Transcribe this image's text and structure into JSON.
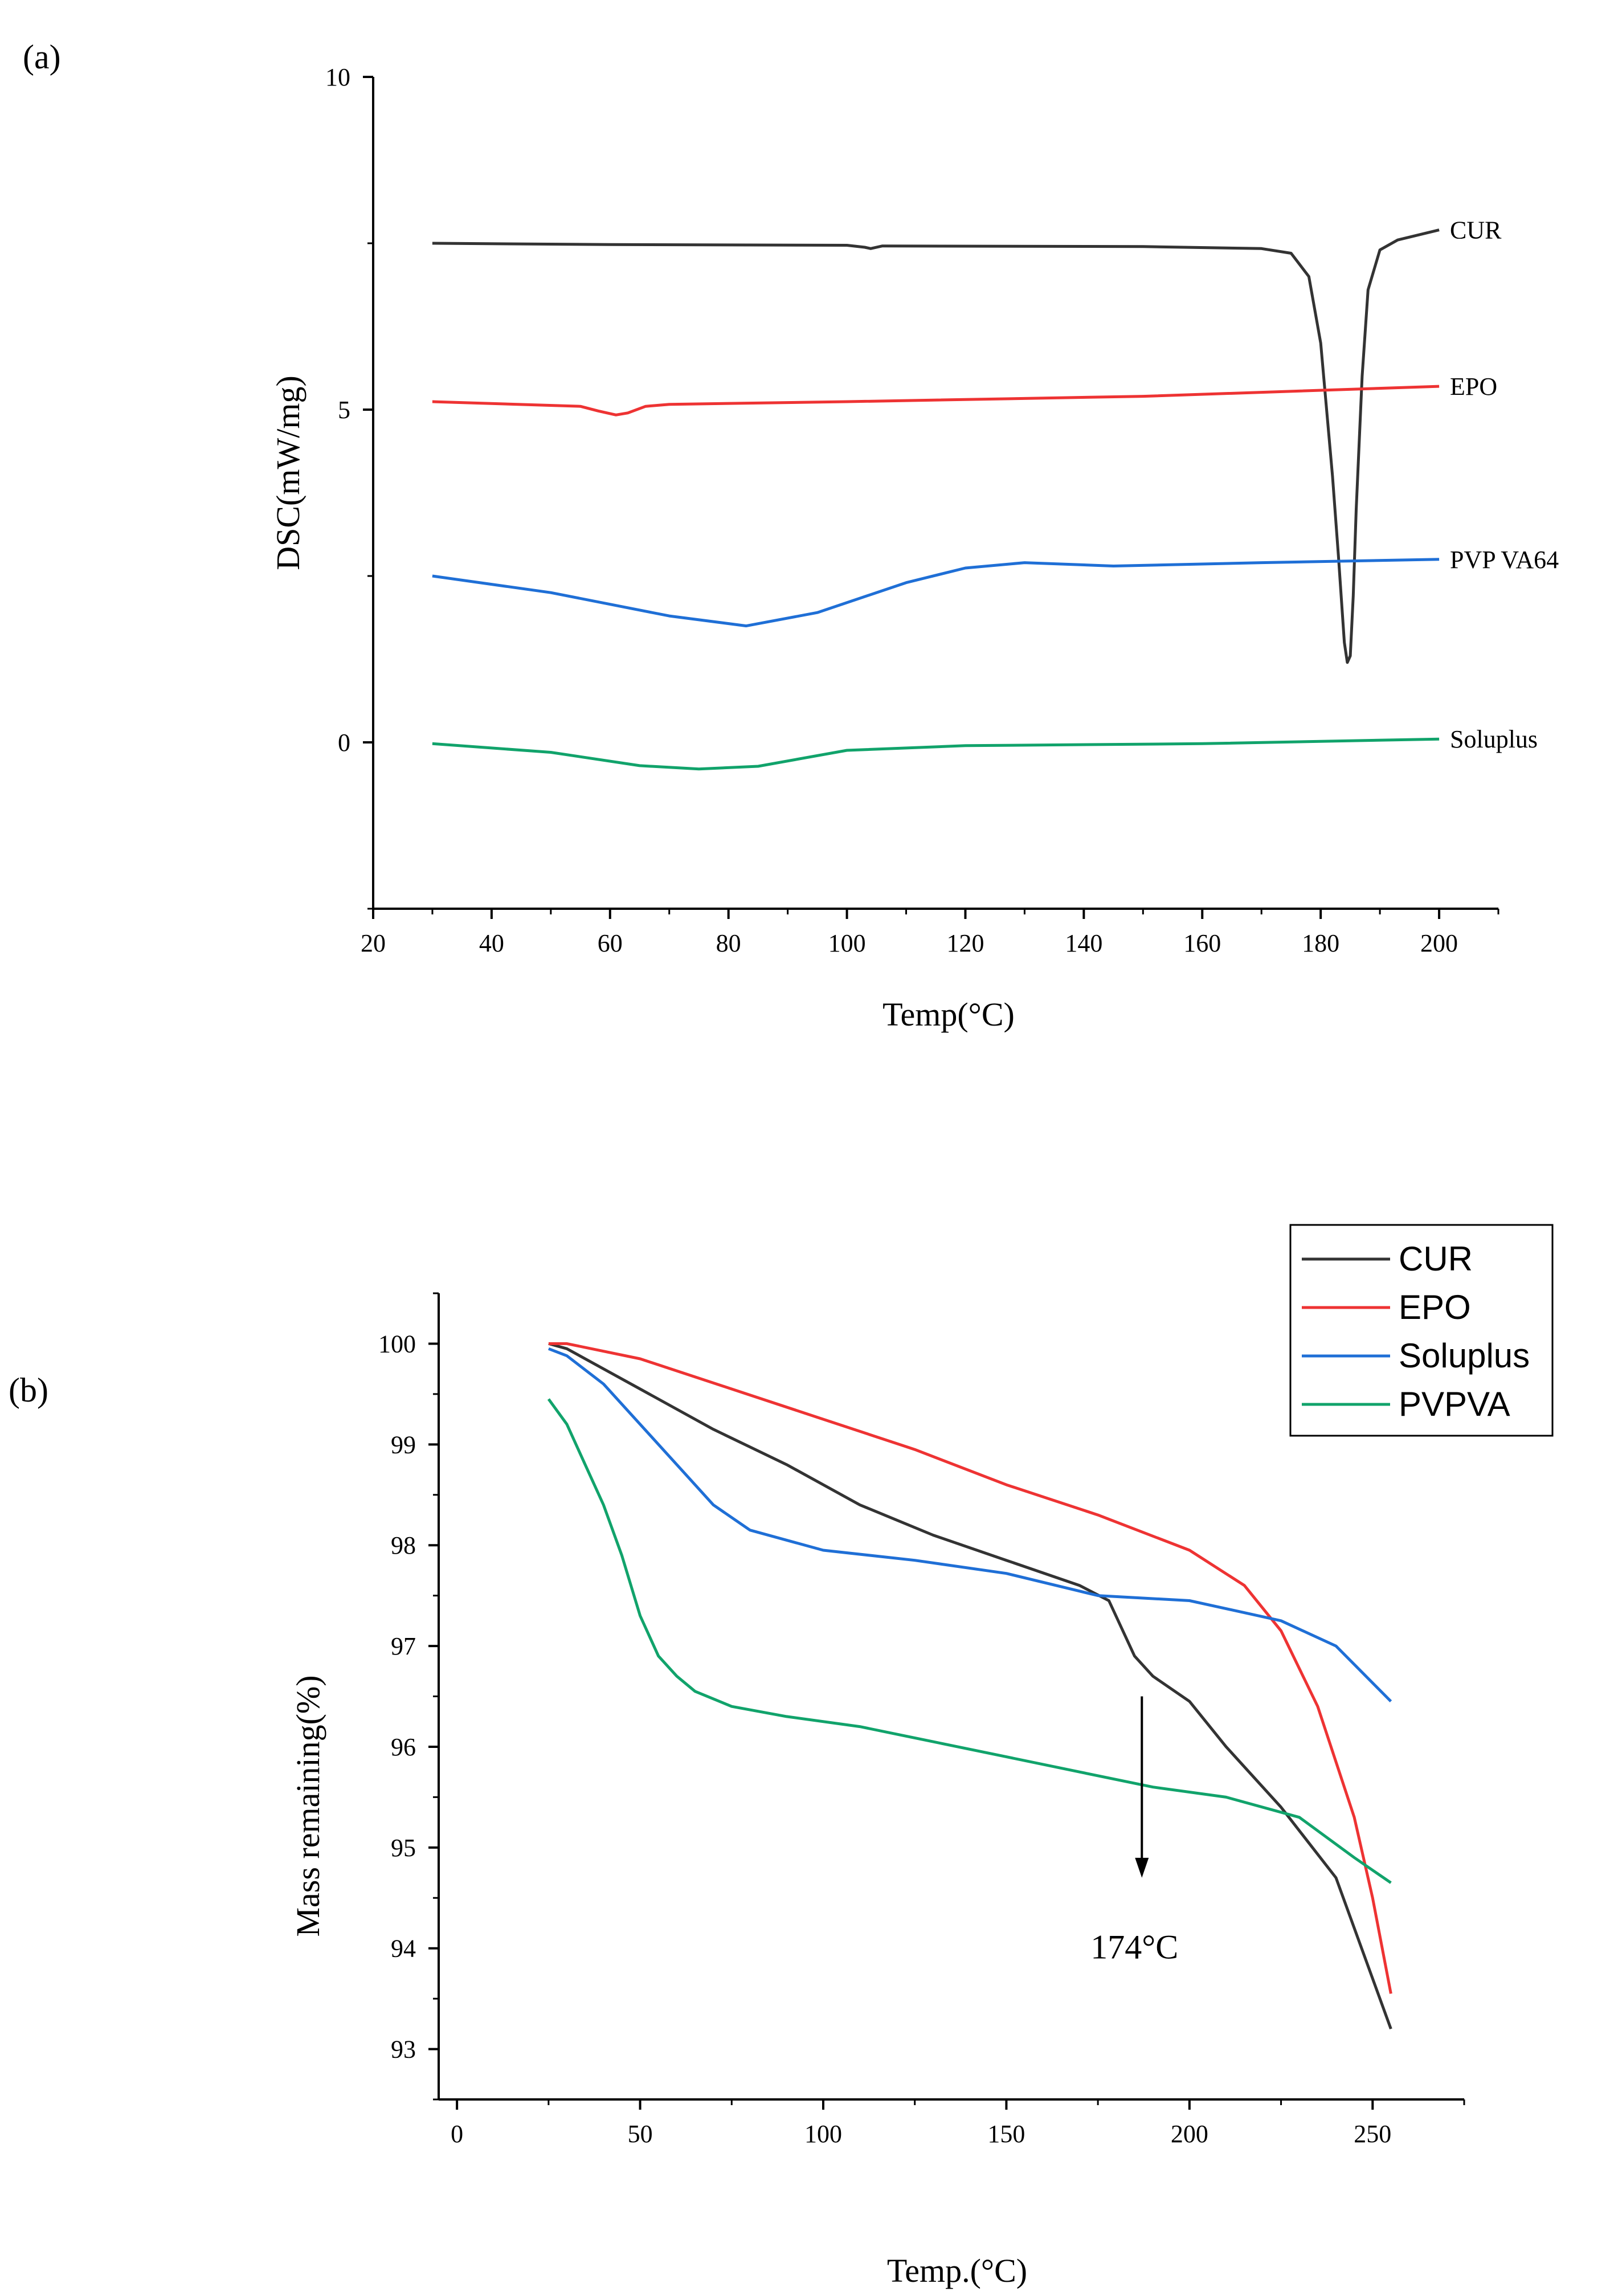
{
  "chart_data": [
    {
      "panel_label": "(a)",
      "type": "line",
      "xlabel": "Temp(°C)",
      "ylabel": "DSC(mW/mg)",
      "xlim": [
        20,
        210
      ],
      "ylim": [
        -2.5,
        10
      ],
      "xticks": [
        "20",
        "40",
        "60",
        "80",
        "100",
        "120",
        "140",
        "160",
        "180",
        "200"
      ],
      "yticks": [
        "0",
        "5",
        "10"
      ],
      "series": [
        {
          "name": "CUR",
          "color": "#333333",
          "x": [
            30,
            60,
            100,
            103,
            104,
            106,
            150,
            170,
            175,
            178,
            180,
            182,
            183,
            184,
            184.5,
            185,
            185.5,
            186,
            187,
            188,
            190,
            193,
            200
          ],
          "y": [
            7.5,
            7.48,
            7.47,
            7.44,
            7.42,
            7.46,
            7.45,
            7.42,
            7.35,
            7.0,
            6.0,
            4.0,
            2.8,
            1.5,
            1.2,
            1.3,
            2.2,
            3.5,
            5.5,
            6.8,
            7.4,
            7.55,
            7.7
          ]
        },
        {
          "name": "EPO",
          "color": "#ee3333",
          "x": [
            30,
            55,
            58,
            61,
            63,
            66,
            70,
            100,
            150,
            200
          ],
          "y": [
            5.12,
            5.05,
            4.98,
            4.92,
            4.95,
            5.05,
            5.08,
            5.12,
            5.2,
            5.35
          ]
        },
        {
          "name": "PVP VA64",
          "color": "#1f6fd6",
          "x": [
            30,
            50,
            70,
            83,
            95,
            110,
            120,
            130,
            145,
            170,
            200
          ],
          "y": [
            2.5,
            2.25,
            1.9,
            1.75,
            1.95,
            2.4,
            2.62,
            2.7,
            2.65,
            2.7,
            2.75
          ]
        },
        {
          "name": "Soluplus",
          "color": "#11a36b",
          "x": [
            30,
            50,
            65,
            75,
            85,
            100,
            120,
            160,
            200
          ],
          "y": [
            -0.02,
            -0.15,
            -0.35,
            -0.4,
            -0.36,
            -0.12,
            -0.05,
            -0.02,
            0.05
          ]
        }
      ]
    },
    {
      "panel_label": "(b)",
      "type": "line",
      "xlabel": "Temp.(°C)",
      "ylabel": "Mass remaining(%)",
      "xlim": [
        -5,
        275
      ],
      "ylim": [
        92.5,
        100.5
      ],
      "xticks": [
        "0",
        "50",
        "100",
        "150",
        "200",
        "250"
      ],
      "yticks": [
        "93",
        "94",
        "95",
        "96",
        "97",
        "98",
        "99",
        "100"
      ],
      "annotation": {
        "text": "174°C",
        "x": 187,
        "y_from": 96.5,
        "y_to": 94.7
      },
      "series": [
        {
          "name": "CUR",
          "color": "#333333",
          "x": [
            25,
            30,
            50,
            70,
            90,
            110,
            130,
            150,
            170,
            178,
            185,
            190,
            200,
            210,
            225,
            240,
            255
          ],
          "y": [
            100,
            99.95,
            99.55,
            99.15,
            98.8,
            98.4,
            98.1,
            97.85,
            97.6,
            97.45,
            96.9,
            96.7,
            96.45,
            96.0,
            95.4,
            94.7,
            93.2
          ]
        },
        {
          "name": "EPO",
          "color": "#ee3333",
          "x": [
            25,
            30,
            50,
            75,
            100,
            125,
            150,
            175,
            200,
            215,
            225,
            235,
            245,
            250,
            255
          ],
          "y": [
            100,
            100,
            99.85,
            99.55,
            99.25,
            98.95,
            98.6,
            98.3,
            97.95,
            97.6,
            97.15,
            96.4,
            95.3,
            94.5,
            93.55
          ]
        },
        {
          "name": "Soluplus",
          "color": "#1f6fd6",
          "x": [
            25,
            30,
            40,
            50,
            60,
            70,
            80,
            100,
            125,
            150,
            175,
            200,
            225,
            240,
            255
          ],
          "y": [
            99.95,
            99.88,
            99.6,
            99.2,
            98.8,
            98.4,
            98.15,
            97.95,
            97.85,
            97.72,
            97.5,
            97.45,
            97.25,
            97.0,
            96.45
          ]
        },
        {
          "name": "PVPVA",
          "color": "#11a36b",
          "x": [
            25,
            30,
            35,
            40,
            45,
            50,
            55,
            60,
            65,
            75,
            90,
            110,
            130,
            150,
            170,
            190,
            210,
            230,
            245,
            255
          ],
          "y": [
            99.45,
            99.2,
            98.8,
            98.4,
            97.9,
            97.3,
            96.9,
            96.7,
            96.55,
            96.4,
            96.3,
            96.2,
            96.05,
            95.9,
            95.75,
            95.6,
            95.5,
            95.3,
            94.9,
            94.65
          ]
        }
      ]
    }
  ]
}
